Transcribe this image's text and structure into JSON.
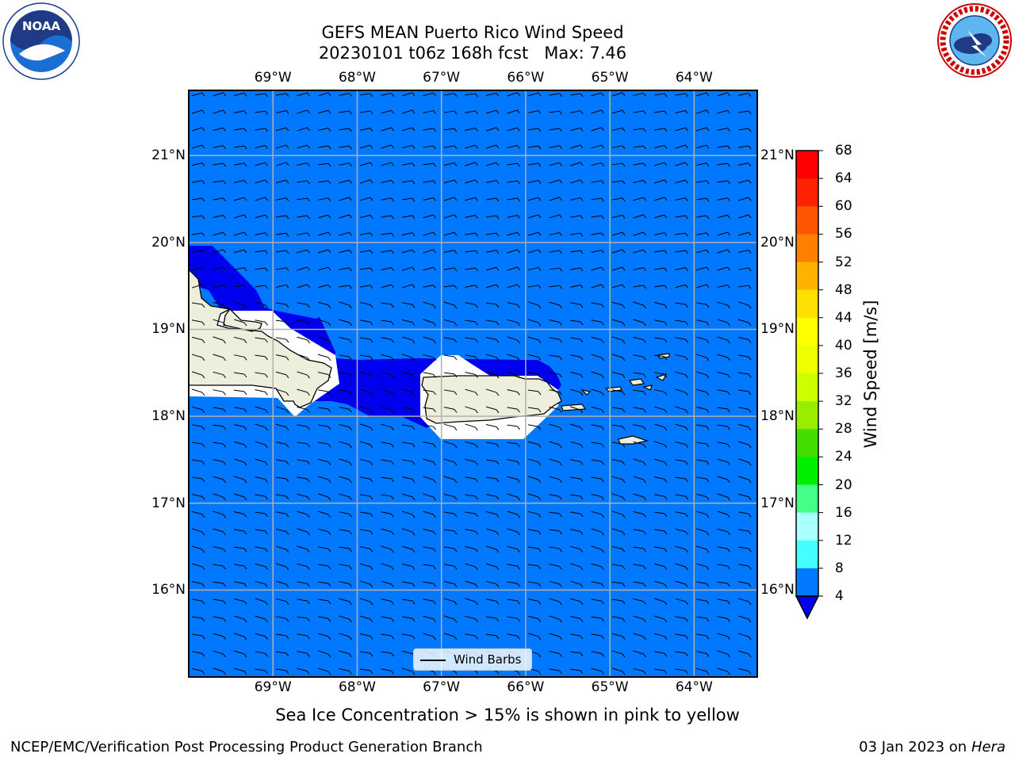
{
  "title": {
    "line1": "GEFS MEAN Puerto Rico Wind Speed",
    "line2": "20230101 t06z 168h fcst   Max: 7.46"
  },
  "map": {
    "lon_range": [
      -70.0,
      -63.25
    ],
    "lat_range": [
      15.0,
      21.75
    ],
    "lon_ticks": [
      {
        "value": -69,
        "label": "69°W"
      },
      {
        "value": -68,
        "label": "68°W"
      },
      {
        "value": -67,
        "label": "67°W"
      },
      {
        "value": -66,
        "label": "66°W"
      },
      {
        "value": -65,
        "label": "65°W"
      },
      {
        "value": -64,
        "label": "64°W"
      }
    ],
    "lat_ticks": [
      {
        "value": 21,
        "label": "21°N"
      },
      {
        "value": 20,
        "label": "20°N"
      },
      {
        "value": 19,
        "label": "19°N"
      },
      {
        "value": 18,
        "label": "18°N"
      },
      {
        "value": 17,
        "label": "17°N"
      },
      {
        "value": 16,
        "label": "16°N"
      }
    ],
    "grid": true,
    "ocean_color": "#0078ff",
    "low_speed_color": "#0000ee",
    "land_color": "#eeeedc"
  },
  "legend": {
    "label": "Wind Barbs",
    "placement": "lower-center"
  },
  "colorbar": {
    "label": "Wind Speed [m/s]",
    "ticks": [
      "68",
      "64",
      "60",
      "56",
      "52",
      "48",
      "44",
      "40",
      "36",
      "32",
      "28",
      "24",
      "20",
      "16",
      "12",
      "8",
      "4"
    ],
    "colors": [
      "#ff0000",
      "#ff2200",
      "#ff5500",
      "#ff8000",
      "#ffb300",
      "#ffe000",
      "#ffff00",
      "#eeff00",
      "#ccff00",
      "#99ee00",
      "#44dd00",
      "#00ee00",
      "#44ff88",
      "#aaffff",
      "#44ffff",
      "#00ffff",
      "#0078ff"
    ],
    "extend_color": "#0000ee"
  },
  "caption": "Sea Ice Concentration > 15% is shown in pink to yellow",
  "footer": {
    "left": "NCEP/EMC/Verification Post Processing Product Generation Branch",
    "right_prefix": "03 Jan 2023 on ",
    "right_italic": "Hera"
  },
  "logos": {
    "left": "NOAA",
    "right": "NATIONAL WEATHER SERVICE"
  }
}
